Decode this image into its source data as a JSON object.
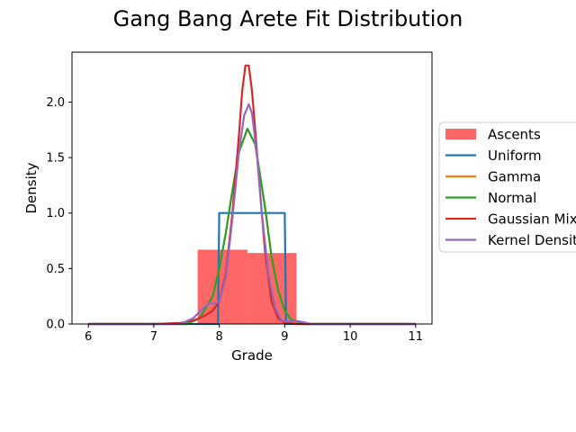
{
  "chart_data": {
    "type": "line",
    "title": "Gang Bang Arete  Fit Distribution",
    "xlabel": "Grade",
    "ylabel": "Density",
    "xlim": [
      5.75,
      11.25
    ],
    "ylim": [
      0,
      2.45
    ],
    "x_ticks": [
      6,
      7,
      8,
      9,
      10,
      11
    ],
    "y_ticks": [
      0.0,
      0.5,
      1.0,
      1.5,
      2.0
    ],
    "x_tick_labels": [
      "6",
      "7",
      "8",
      "9",
      "10",
      "11"
    ],
    "y_tick_labels": [
      "0.0",
      "0.5",
      "1.0",
      "1.5",
      "2.0"
    ],
    "grid": false,
    "legend_position": "right, outside plot",
    "histogram": {
      "name": "Ascents",
      "color": "#ff6666",
      "bins": [
        {
          "x0": 7.67,
          "x1": 8.43,
          "density": 0.67
        },
        {
          "x0": 8.43,
          "x1": 9.18,
          "density": 0.64
        }
      ]
    },
    "series": [
      {
        "name": "Uniform",
        "color": "#1f77b4",
        "x": [
          6.0,
          7.98,
          8.0,
          9.0,
          9.02,
          11.0
        ],
        "y": [
          0.0,
          0.0,
          1.0,
          1.0,
          0.0,
          0.0
        ]
      },
      {
        "name": "Gamma",
        "color": "#ff7f0e",
        "x": [
          6.0,
          7.5,
          7.7,
          7.9,
          8.0,
          8.1,
          8.2,
          8.3,
          8.43,
          8.55,
          8.7,
          8.8,
          8.9,
          9.0,
          9.1,
          9.3,
          9.5,
          11.0
        ],
        "y": [
          0.0,
          0.0,
          0.05,
          0.25,
          0.5,
          0.82,
          1.2,
          1.55,
          1.76,
          1.62,
          1.05,
          0.6,
          0.3,
          0.12,
          0.04,
          0.0,
          0.0,
          0.0
        ]
      },
      {
        "name": "Normal",
        "color": "#2ca02c",
        "x": [
          6.0,
          7.5,
          7.7,
          7.9,
          8.0,
          8.1,
          8.2,
          8.3,
          8.43,
          8.55,
          8.7,
          8.8,
          8.9,
          9.0,
          9.1,
          9.3,
          9.5,
          11.0
        ],
        "y": [
          0.0,
          0.0,
          0.05,
          0.25,
          0.5,
          0.82,
          1.2,
          1.55,
          1.76,
          1.62,
          1.05,
          0.6,
          0.3,
          0.12,
          0.04,
          0.0,
          0.0,
          0.0
        ]
      },
      {
        "name": "Gaussian Mixture",
        "color": "#d62728",
        "x": [
          6.0,
          7.0,
          7.4,
          7.6,
          7.8,
          7.9,
          8.0,
          8.1,
          8.2,
          8.3,
          8.35,
          8.4,
          8.45,
          8.5,
          8.55,
          8.6,
          8.7,
          8.8,
          8.9,
          9.0,
          9.2,
          11.0
        ],
        "y": [
          0.0,
          0.0,
          0.01,
          0.03,
          0.08,
          0.12,
          0.2,
          0.45,
          1.0,
          1.7,
          2.1,
          2.33,
          2.33,
          2.1,
          1.75,
          1.35,
          0.65,
          0.2,
          0.05,
          0.01,
          0.0,
          0.0
        ]
      },
      {
        "name": "Kernel Density",
        "color": "#9467bd",
        "x": [
          6.0,
          7.4,
          7.6,
          7.75,
          7.85,
          7.92,
          8.0,
          8.1,
          8.2,
          8.3,
          8.38,
          8.45,
          8.5,
          8.58,
          8.65,
          8.75,
          8.85,
          8.95,
          9.05,
          9.15,
          9.25,
          9.4,
          11.0
        ],
        "y": [
          0.0,
          0.0,
          0.05,
          0.14,
          0.19,
          0.18,
          0.2,
          0.42,
          0.95,
          1.55,
          1.88,
          1.98,
          1.9,
          1.5,
          1.0,
          0.45,
          0.15,
          0.03,
          0.02,
          0.03,
          0.02,
          0.0,
          0.0
        ]
      }
    ]
  }
}
